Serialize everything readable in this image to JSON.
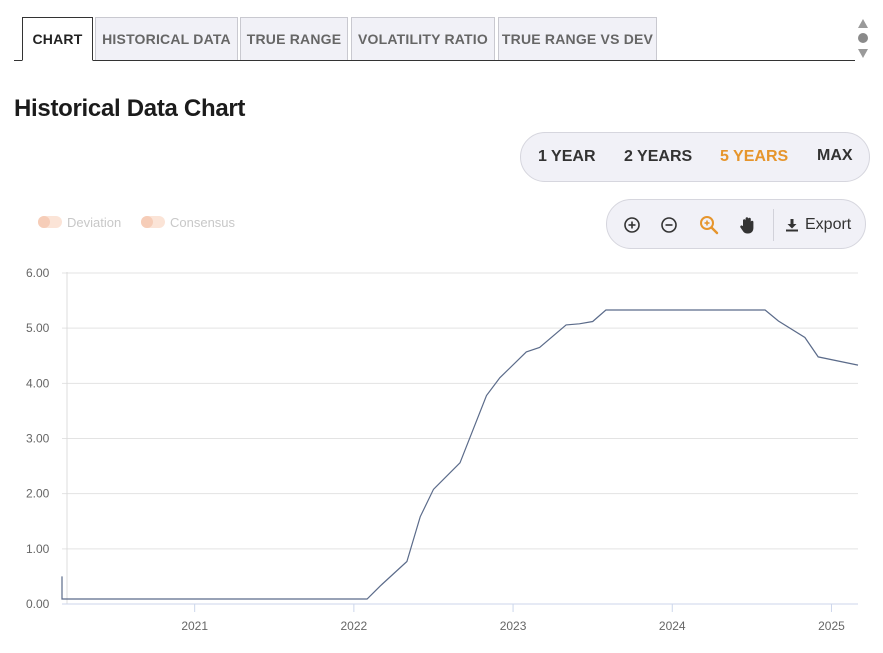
{
  "tabs": [
    {
      "label": "CHART",
      "active": true
    },
    {
      "label": "HISTORICAL DATA",
      "active": false
    },
    {
      "label": "TRUE RANGE",
      "active": false
    },
    {
      "label": "VOLATILITY RATIO",
      "active": false
    },
    {
      "label": "TRUE RANGE VS DEV",
      "active": false
    }
  ],
  "page_title": "Historical Data Chart",
  "range_selector": {
    "options": [
      "1 YEAR",
      "2 YEARS",
      "5 YEARS",
      "MAX"
    ],
    "selected": "5 YEARS"
  },
  "toolbar": {
    "icons": [
      "zoom-in-icon",
      "zoom-out-icon",
      "zoom-select-icon",
      "pan-hand-icon",
      "download-icon"
    ],
    "export_label": "Export"
  },
  "legend": [
    "Deviation",
    "Consensus"
  ],
  "colors": {
    "accent": "#e6952c",
    "line": "#5b6b8a",
    "grid": "#e3e3e3",
    "legend_swatch": "#f6cdb8"
  },
  "chart_data": {
    "type": "line",
    "title": "",
    "xlabel": "",
    "ylabel": "",
    "ylim": [
      0,
      6
    ],
    "xlim": [
      "2020-03",
      "2025-03"
    ],
    "y_ticks": [
      "0.00",
      "1.00",
      "2.00",
      "3.00",
      "4.00",
      "5.00",
      "6.00"
    ],
    "x_ticks": [
      "2021",
      "2022",
      "2023",
      "2024",
      "2025"
    ],
    "grid": true,
    "series": [
      {
        "points": [
          {
            "x": "2020-03",
            "y": 0.5
          },
          {
            "x": "2020-03",
            "y": 0.09
          },
          {
            "x": "2022-02",
            "y": 0.09
          },
          {
            "x": "2022-03",
            "y": 0.33
          },
          {
            "x": "2022-05",
            "y": 0.77
          },
          {
            "x": "2022-06",
            "y": 1.58
          },
          {
            "x": "2022-07",
            "y": 2.08
          },
          {
            "x": "2022-09",
            "y": 2.56
          },
          {
            "x": "2022-11",
            "y": 3.78
          },
          {
            "x": "2022-12",
            "y": 4.1
          },
          {
            "x": "2023-02",
            "y": 4.57
          },
          {
            "x": "2023-03",
            "y": 4.65
          },
          {
            "x": "2023-05",
            "y": 5.06
          },
          {
            "x": "2023-06",
            "y": 5.08
          },
          {
            "x": "2023-07",
            "y": 5.12
          },
          {
            "x": "2023-08",
            "y": 5.33
          },
          {
            "x": "2024-08",
            "y": 5.33
          },
          {
            "x": "2024-09",
            "y": 5.13
          },
          {
            "x": "2024-11",
            "y": 4.83
          },
          {
            "x": "2024-12",
            "y": 4.48
          },
          {
            "x": "2025-03",
            "y": 4.33
          }
        ]
      }
    ]
  }
}
